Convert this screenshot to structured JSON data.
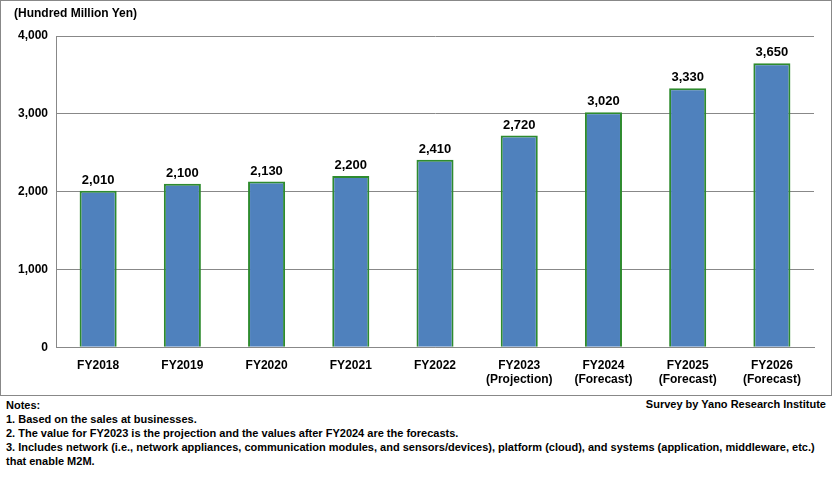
{
  "chart_data": {
    "type": "bar",
    "ylabel": "(Hundred  Million Yen)",
    "categories": [
      "FY2018",
      "FY2019",
      "FY2020",
      "FY2021",
      "FY2022",
      "FY2023\n(Projection)",
      "FY2024\n(Forecast)",
      "FY2025\n(Forecast)",
      "FY2026\n(Forecast)"
    ],
    "values": [
      2010,
      2100,
      2130,
      2200,
      2410,
      2720,
      3020,
      3330,
      3650
    ],
    "value_labels": [
      "2,010",
      "2,100",
      "2,130",
      "2,200",
      "2,410",
      "2,720",
      "3,020",
      "3,330",
      "3,650"
    ],
    "color": "#4f81bd",
    "ylim": [
      0,
      4000
    ],
    "yticks": [
      0,
      {
        "value": 1000,
        "label": "1,000"
      },
      {
        "value": 2000,
        "label": "2,000"
      },
      {
        "value": 3000,
        "label": "3,000"
      },
      {
        "value": 4000,
        "label": "4,000"
      }
    ],
    "grid": true,
    "data_labels": true,
    "notes": [
      "Notes:",
      "1. Based on the sales at businesses.",
      "2. The value for FY2023 is the projection and the values after FY2024 are the forecasts.",
      "3. Includes network (i.e., network appliances, communication modules, and sensors/devices), platform (cloud), and systems (application, middleware, etc.) that enable M2M."
    ],
    "source": "Survey by Yano Research Institute"
  }
}
